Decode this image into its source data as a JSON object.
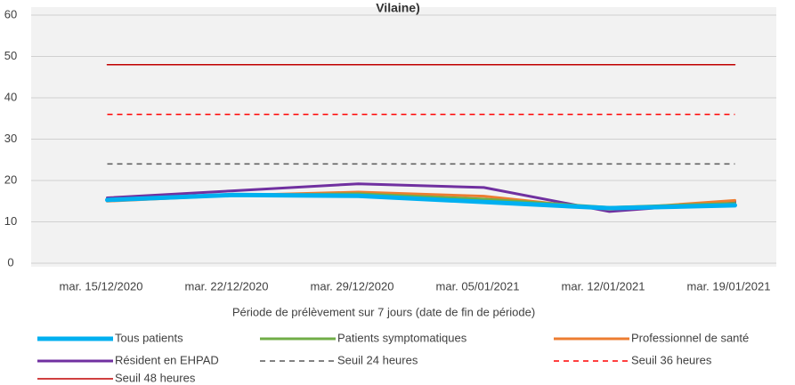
{
  "chart_data": {
    "type": "line",
    "title": "Vilaine)",
    "x_label": "Période de prélèvement sur 7 jours (date de fin de période)",
    "categories": [
      "mar. 15/12/2020",
      "mar. 22/12/2020",
      "mar. 29/12/2020",
      "mar. 05/01/2021",
      "mar. 12/01/2021",
      "mar. 19/01/2021"
    ],
    "ylim": [
      0,
      60
    ],
    "yticks": [
      0,
      10,
      20,
      30,
      40,
      50,
      60
    ],
    "grid": true,
    "legend": "bottom",
    "series": [
      {
        "name": "Tous patients",
        "color": "#00b0f0",
        "values": [
          15.3,
          16.5,
          16.3,
          14.8,
          13.3,
          14.0
        ]
      },
      {
        "name": "Patients symptomatiques",
        "color": "#70ad47",
        "values": [
          15.2,
          16.4,
          16.8,
          15.5,
          13.5,
          14.5
        ]
      },
      {
        "name": "Professionnel de santé",
        "color": "#ed7d31",
        "values": [
          15.0,
          16.4,
          17.2,
          16.2,
          13.0,
          15.2
        ]
      },
      {
        "name": "Résident en EHPAD",
        "color": "#7030a0",
        "values": [
          15.8,
          17.5,
          19.2,
          18.3,
          12.5,
          14.8
        ]
      },
      {
        "name": "Seuil 24 heures",
        "color": "#595959",
        "dash": true,
        "values": [
          24,
          24,
          24,
          24,
          24,
          24
        ]
      },
      {
        "name": "Seuil 36 heures",
        "color": "#ff0000",
        "dash": true,
        "values": [
          36,
          36,
          36,
          36,
          36,
          36
        ]
      },
      {
        "name": "Seuil 48 heures",
        "color": "#c00000",
        "values": [
          48,
          48,
          48,
          48,
          48,
          48
        ]
      }
    ]
  }
}
